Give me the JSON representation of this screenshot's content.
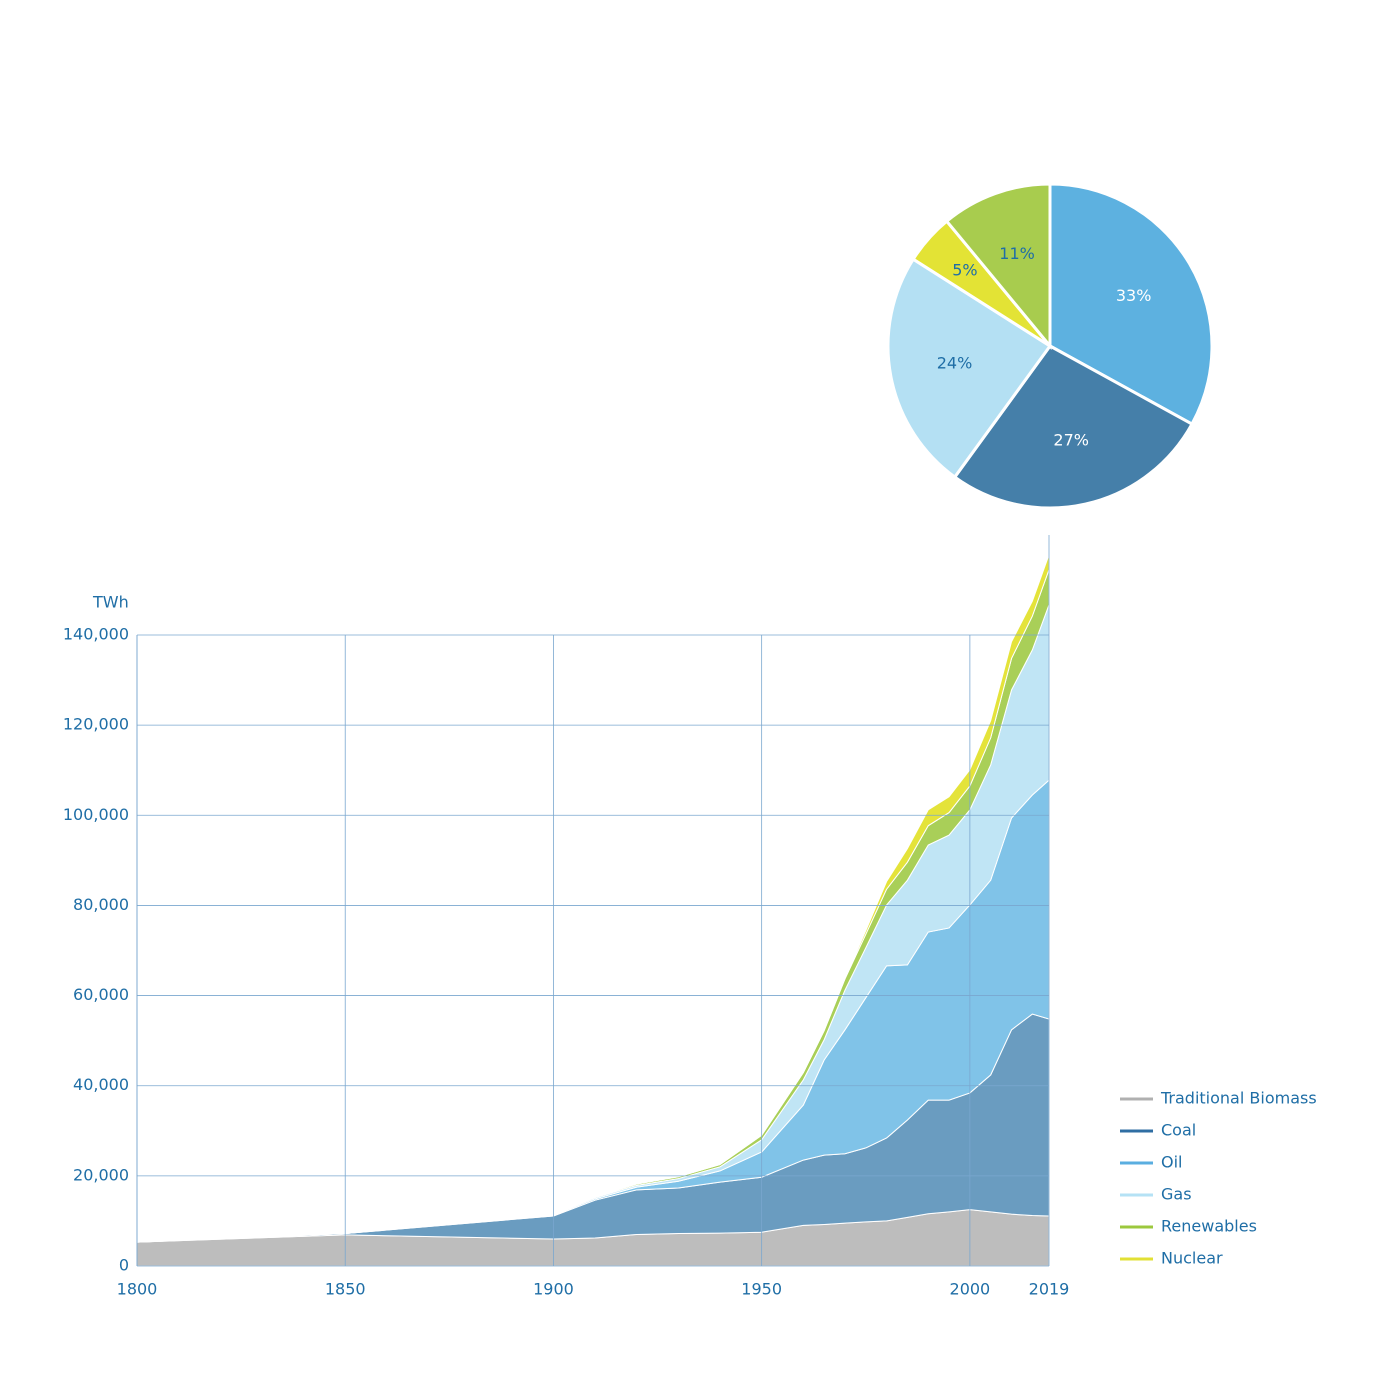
{
  "chart_data": [
    {
      "type": "area",
      "y_label": "TWh",
      "x": [
        1800,
        1850,
        1900,
        1910,
        1920,
        1930,
        1940,
        1950,
        1960,
        1965,
        1970,
        1975,
        1980,
        1985,
        1990,
        1995,
        2000,
        2005,
        2010,
        2015,
        2019
      ],
      "series": [
        {
          "name": "Traditional Biomass",
          "color": "#bdbdbd",
          "legend_color": "#b0b0b0",
          "values": [
            5300,
            6900,
            6000,
            6200,
            7000,
            7200,
            7300,
            7500,
            9000,
            9200,
            9500,
            9800,
            10000,
            10800,
            11600,
            12000,
            12500,
            12000,
            11500,
            11200,
            11100
          ]
        },
        {
          "name": "Coal",
          "color": "#6a9cc0",
          "legend_color": "#2f6ea3",
          "values": [
            0,
            300,
            5100,
            8400,
            9900,
            10100,
            11300,
            12200,
            14500,
            15400,
            15400,
            16400,
            18400,
            21600,
            25200,
            24800,
            25900,
            30400,
            40900,
            44700,
            43700
          ]
        },
        {
          "name": "Oil",
          "color": "#80c3e8",
          "legend_color": "#5aaee0",
          "values": [
            0,
            0,
            200,
            300,
            600,
            1500,
            2500,
            5600,
            12200,
            21100,
            27500,
            33300,
            38200,
            34400,
            37300,
            38200,
            41700,
            43200,
            47000,
            48600,
            53000
          ]
        },
        {
          "name": "Gas",
          "color": "#c0e5f5",
          "legend_color": "#b5e2f5",
          "values": [
            0,
            0,
            200,
            300,
            400,
            600,
            900,
            2700,
            5600,
            4500,
            8800,
            11100,
            13500,
            18800,
            19300,
            20600,
            21100,
            25600,
            28400,
            32200,
            38900
          ]
        },
        {
          "name": "Renewables",
          "color": "#a9cf58",
          "legend_color": "#9cc83e",
          "values": [
            0,
            0,
            100,
            200,
            300,
            400,
            500,
            1000,
            1600,
            2000,
            2500,
            3000,
            3500,
            4000,
            4300,
            5000,
            5300,
            6000,
            7000,
            7500,
            7800
          ]
        },
        {
          "name": "Nuclear",
          "color": "#e4e33a",
          "legend_color": "#e2e035",
          "values": [
            0,
            0,
            0,
            0,
            0,
            0,
            0,
            0,
            0,
            100,
            200,
            800,
            1700,
            3000,
            3500,
            3500,
            3600,
            3800,
            3700,
            3300,
            3300
          ]
        }
      ],
      "xlim": [
        1800,
        2019
      ],
      "xticks": [
        1800,
        1850,
        1900,
        1950,
        2000,
        2019
      ],
      "ylim": [
        0,
        140000
      ],
      "yticks": [
        0,
        {
          "value": 20000,
          "label": "20,000"
        },
        {
          "value": 40000,
          "label": "40,000"
        },
        {
          "value": 60000,
          "label": "60,000"
        },
        {
          "value": 80000,
          "label": "80,000"
        },
        {
          "value": 100000,
          "label": "100,000"
        },
        {
          "value": 120000,
          "label": "120,000"
        },
        {
          "value": 140000,
          "label": "140,000"
        }
      ],
      "grid": true,
      "legend": "right"
    },
    {
      "type": "pie",
      "values": [
        33,
        27,
        24,
        5,
        11
      ],
      "value_labels": [
        "33%",
        "27%",
        "24%",
        "5%",
        "11%"
      ],
      "colors": [
        "#5db1e0",
        "#457fa9",
        "#b4e0f3",
        "#e3e335",
        "#a8cc4e"
      ],
      "label_colors": [
        "#ffffff",
        "#ffffff",
        "#1f6ea6",
        "#1f6ea6",
        "#1f6ea6"
      ]
    }
  ]
}
